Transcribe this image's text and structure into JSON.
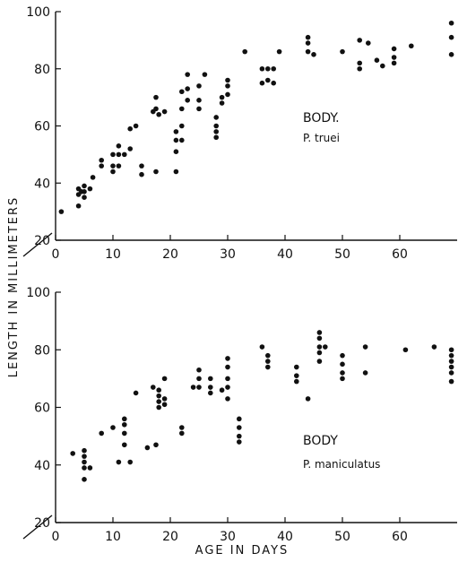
{
  "figure": {
    "ylabel": "LENGTH IN MILLIMETERS",
    "xlabel": "AGE IN DAYS"
  },
  "chart_data": [
    {
      "type": "scatter",
      "panel": "top",
      "annotation_title": "BODY.",
      "annotation_species": "P. truei",
      "xlim": [
        0,
        70
      ],
      "ylim": [
        20,
        100
      ],
      "x_ticks": [
        0,
        10,
        20,
        30,
        40,
        50,
        60
      ],
      "y_ticks": [
        20,
        40,
        60,
        80,
        100
      ],
      "points": [
        [
          1,
          30
        ],
        [
          4,
          32
        ],
        [
          4,
          36
        ],
        [
          4,
          38
        ],
        [
          4.5,
          37
        ],
        [
          5,
          35
        ],
        [
          5,
          37
        ],
        [
          5,
          39
        ],
        [
          6,
          38
        ],
        [
          6.5,
          42
        ],
        [
          8,
          46
        ],
        [
          8,
          48
        ],
        [
          10,
          44
        ],
        [
          10,
          46
        ],
        [
          10,
          50
        ],
        [
          11,
          46
        ],
        [
          11,
          50
        ],
        [
          11,
          53
        ],
        [
          12,
          50
        ],
        [
          13,
          52
        ],
        [
          13,
          59
        ],
        [
          14,
          60
        ],
        [
          15,
          43
        ],
        [
          15,
          46
        ],
        [
          17,
          65
        ],
        [
          17.5,
          44
        ],
        [
          17.5,
          66
        ],
        [
          17.5,
          70
        ],
        [
          18,
          64
        ],
        [
          19,
          65
        ],
        [
          21,
          44
        ],
        [
          21,
          51
        ],
        [
          21,
          55
        ],
        [
          21,
          58
        ],
        [
          22,
          55
        ],
        [
          22,
          60
        ],
        [
          22,
          66
        ],
        [
          22,
          72
        ],
        [
          23,
          69
        ],
        [
          23,
          73
        ],
        [
          23,
          78
        ],
        [
          25,
          66
        ],
        [
          25,
          69
        ],
        [
          25,
          74
        ],
        [
          26,
          78
        ],
        [
          28,
          56
        ],
        [
          28,
          58
        ],
        [
          28,
          60
        ],
        [
          28,
          63
        ],
        [
          29,
          68
        ],
        [
          29,
          70
        ],
        [
          30,
          71
        ],
        [
          30,
          74
        ],
        [
          30,
          76
        ],
        [
          33,
          86
        ],
        [
          36,
          75
        ],
        [
          36,
          80
        ],
        [
          37,
          76
        ],
        [
          37,
          80
        ],
        [
          38,
          75
        ],
        [
          38,
          80
        ],
        [
          39,
          86
        ],
        [
          44,
          86
        ],
        [
          44,
          89
        ],
        [
          44,
          91
        ],
        [
          45,
          85
        ],
        [
          50,
          86
        ],
        [
          53,
          80
        ],
        [
          53,
          82
        ],
        [
          53,
          90
        ],
        [
          54.5,
          89
        ],
        [
          56,
          83
        ],
        [
          57,
          81
        ],
        [
          59,
          82
        ],
        [
          59,
          84
        ],
        [
          59,
          87
        ],
        [
          62,
          88
        ],
        [
          69,
          85
        ],
        [
          69,
          91
        ],
        [
          69,
          96
        ]
      ]
    },
    {
      "type": "scatter",
      "panel": "bottom",
      "annotation_title": "BODY",
      "annotation_species": "P. maniculatus",
      "xlim": [
        0,
        70
      ],
      "ylim": [
        20,
        100
      ],
      "x_ticks": [
        0,
        10,
        20,
        30,
        40,
        50,
        60
      ],
      "y_ticks": [
        20,
        40,
        60,
        80,
        100
      ],
      "points": [
        [
          3,
          44
        ],
        [
          5,
          35
        ],
        [
          5,
          39
        ],
        [
          5,
          41
        ],
        [
          5,
          43
        ],
        [
          5,
          45
        ],
        [
          6,
          39
        ],
        [
          8,
          51
        ],
        [
          10,
          53
        ],
        [
          11,
          41
        ],
        [
          12,
          47
        ],
        [
          12,
          51
        ],
        [
          12,
          54
        ],
        [
          12,
          56
        ],
        [
          13,
          41
        ],
        [
          14,
          65
        ],
        [
          16,
          46
        ],
        [
          17,
          67
        ],
        [
          17.5,
          47
        ],
        [
          18,
          60
        ],
        [
          18,
          62
        ],
        [
          18,
          64
        ],
        [
          18,
          66
        ],
        [
          19,
          61
        ],
        [
          19,
          63
        ],
        [
          19,
          70
        ],
        [
          22,
          51
        ],
        [
          22,
          53
        ],
        [
          24,
          67
        ],
        [
          25,
          67
        ],
        [
          25,
          70
        ],
        [
          25,
          73
        ],
        [
          27,
          65
        ],
        [
          27,
          67
        ],
        [
          27,
          70
        ],
        [
          29,
          66
        ],
        [
          30,
          63
        ],
        [
          30,
          67
        ],
        [
          30,
          70
        ],
        [
          30,
          74
        ],
        [
          30,
          77
        ],
        [
          32,
          48
        ],
        [
          32,
          50
        ],
        [
          32,
          53
        ],
        [
          32,
          56
        ],
        [
          36,
          81
        ],
        [
          37,
          74
        ],
        [
          37,
          76
        ],
        [
          37,
          78
        ],
        [
          42,
          69
        ],
        [
          42,
          71
        ],
        [
          42,
          74
        ],
        [
          44,
          63
        ],
        [
          46,
          76
        ],
        [
          46,
          79
        ],
        [
          46,
          81
        ],
        [
          46,
          84
        ],
        [
          46,
          86
        ],
        [
          47,
          81
        ],
        [
          50,
          70
        ],
        [
          50,
          72
        ],
        [
          50,
          75
        ],
        [
          50,
          78
        ],
        [
          54,
          72
        ],
        [
          54,
          81
        ],
        [
          61,
          80
        ],
        [
          66,
          81
        ],
        [
          69,
          69
        ],
        [
          69,
          72
        ],
        [
          69,
          74
        ],
        [
          69,
          76
        ],
        [
          69,
          78
        ],
        [
          69,
          80
        ]
      ]
    }
  ]
}
